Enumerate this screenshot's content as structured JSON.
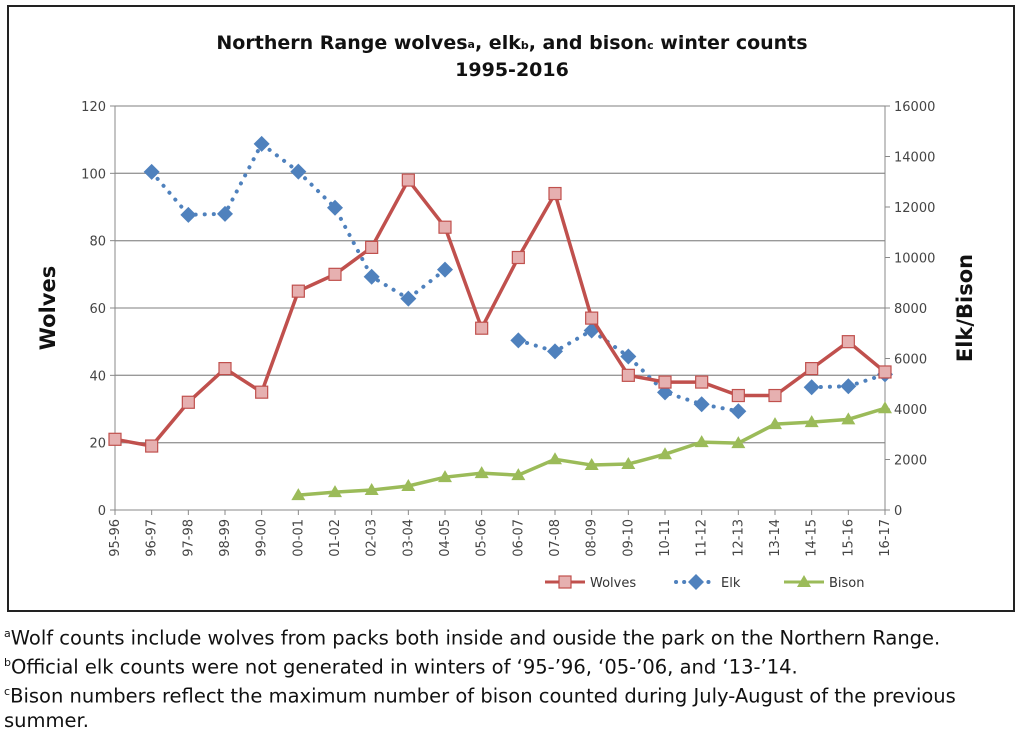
{
  "chart_data": {
    "type": "line",
    "title": "Northern Range wolves, elk, and bison winter counts",
    "title_superscripts": [
      "a",
      "b",
      "c"
    ],
    "title_parts": [
      "Northern Range wolves",
      "a",
      ", elk",
      "b",
      ", and bison",
      "c",
      " winter counts"
    ],
    "subtitle": "1995-2016",
    "categories": [
      "95-96",
      "96-97",
      "97-98",
      "98-99",
      "99-00",
      "00-01",
      "01-02",
      "02-03",
      "03-04",
      "04-05",
      "05-06",
      "06-07",
      "07-08",
      "08-09",
      "09-10",
      "10-11",
      "11-12",
      "12-13",
      "13-14",
      "14-15",
      "15-16",
      "16-17"
    ],
    "ylabel": "Wolves",
    "ylim": [
      0,
      120
    ],
    "yticks": [
      0,
      20,
      40,
      60,
      80,
      100,
      120
    ],
    "y2label": "Elk/Bison",
    "y2lim": [
      0,
      16000
    ],
    "y2ticks": [
      0,
      2000,
      4000,
      6000,
      8000,
      10000,
      12000,
      14000,
      16000
    ],
    "grid": true,
    "legend_position": "bottom-right",
    "series": [
      {
        "name": "Wolves",
        "axis": "left",
        "color": "#c0504d",
        "marker": "square",
        "values": [
          21,
          19,
          32,
          42,
          35,
          65,
          70,
          78,
          98,
          84,
          54,
          75,
          94,
          57,
          40,
          38,
          38,
          34,
          34,
          42,
          50,
          41
        ]
      },
      {
        "name": "Elk",
        "axis": "right",
        "color": "#4f81bd",
        "marker": "diamond",
        "style": "dotted",
        "values": [
          null,
          13390,
          11690,
          11730,
          14500,
          13400,
          11970,
          9240,
          8370,
          9520,
          null,
          6720,
          6280,
          7110,
          6080,
          4660,
          4190,
          3910,
          null,
          4860,
          4900,
          5370
        ]
      },
      {
        "name": "Bison",
        "axis": "right",
        "color": "#9bbb59",
        "marker": "triangle",
        "values": [
          null,
          null,
          null,
          null,
          null,
          590,
          710,
          790,
          950,
          1300,
          1460,
          1380,
          2010,
          1780,
          1820,
          2210,
          2690,
          2650,
          3400,
          3480,
          3590,
          4030
        ]
      }
    ]
  },
  "footnotes": [
    {
      "mark": "a",
      "text": "Wolf counts include wolves  from packs both inside and ouside the park on the Northern Range."
    },
    {
      "mark": "b",
      "text": "Official elk counts were not generated in winters  of ‘95-’96, ‘05-’06, and ‘13-’14."
    },
    {
      "mark": "c",
      "text": "Bison numbers reflect the maximum number of bison counted during July-August of the previous summer."
    }
  ]
}
